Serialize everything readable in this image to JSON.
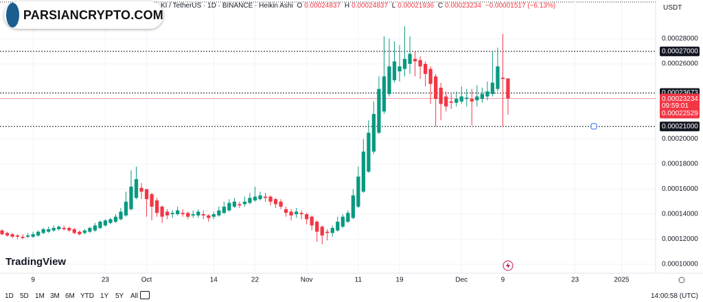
{
  "header": {
    "symbol": "KI / TetherUS · 1D · BINANCE · Heikin Ashi",
    "o": "O",
    "h": "H",
    "l": "L",
    "c": "C",
    "change": "−0.00001517 (−6.13%)",
    "currency": "USDT"
  },
  "watermark": "PARSIANCRYPTO.COM",
  "brand": "TradingView",
  "toolbar": {
    "ranges": [
      "1D",
      "5D",
      "1M",
      "3M",
      "6M",
      "YTD",
      "1Y",
      "5Y",
      "All"
    ],
    "time": "14:00:58 (UTC)"
  },
  "chart_data": {
    "type": "candlestick",
    "up_color": "#089981",
    "down_color": "#f23645",
    "x": [
      3,
      4,
      5,
      6,
      7,
      8,
      9,
      10,
      11,
      12,
      13,
      14,
      15,
      16,
      17,
      18,
      19,
      20,
      21,
      22,
      23,
      24,
      25,
      26,
      27,
      28,
      29,
      30,
      31,
      32,
      33,
      34,
      35,
      36,
      37,
      38,
      39,
      40,
      41,
      42,
      43,
      44,
      45,
      46,
      47,
      48,
      49,
      50,
      51,
      52,
      53,
      54,
      55,
      56,
      57,
      58,
      59,
      60,
      61,
      62,
      63,
      64,
      65,
      66,
      67,
      68,
      69,
      70,
      71,
      72,
      73,
      74,
      75,
      76,
      77,
      78,
      79,
      80,
      81,
      82,
      83,
      84,
      85,
      86,
      87,
      88,
      89,
      90,
      91,
      92,
      93,
      94,
      95,
      96,
      97,
      98,
      99,
      100,
      101
    ],
    "open": [
      0.000127,
      0.000125,
      0.000124,
      0.000123,
      0.000122,
      0.000122,
      0.000122,
      0.000123,
      0.000125,
      0.000126,
      0.000127,
      0.000128,
      0.000129,
      0.000129,
      0.000128,
      0.000126,
      0.000125,
      0.000126,
      0.000127,
      0.000129,
      0.000131,
      0.000133,
      0.000134,
      0.000136,
      0.000139,
      0.000144,
      0.000153,
      0.000161,
      0.00016,
      0.000156,
      0.000151,
      0.000146,
      0.000142,
      0.00014,
      0.00014,
      0.000141,
      0.000141,
      0.000139,
      0.000139,
      0.00014,
      0.000139,
      0.000138,
      0.000139,
      0.000141,
      0.000143,
      0.000146,
      0.000148,
      0.000148,
      0.000149,
      0.000151,
      0.000152,
      0.000154,
      0.000154,
      0.000152,
      0.00015,
      0.000144,
      0.000142,
      0.00014,
      0.000141,
      0.00014,
      0.000138,
      0.000134,
      0.00013,
      0.000126,
      0.000125,
      0.000127,
      0.00013,
      0.000134,
      0.000137,
      0.000146,
      0.000158,
      0.000174,
      0.00019,
      0.000205,
      0.000222,
      0.000236,
      0.000247,
      0.000254,
      0.000256,
      0.00026,
      0.000264,
      0.000263,
      0.00026,
      0.000256,
      0.00025,
      0.000241,
      0.000234,
      0.00023,
      0.000229,
      0.00023,
      0.000232,
      0.000232,
      0.000231,
      0.000232,
      0.000234,
      0.000236,
      0.00024,
      0.000249,
      0.00024837
    ],
    "close": [
      0.000124,
      0.000123,
      0.000122,
      0.000122,
      0.000121,
      0.000123,
      0.000124,
      0.000126,
      0.000128,
      0.000128,
      0.000129,
      0.00013,
      0.000128,
      0.000127,
      0.000125,
      0.000124,
      0.000127,
      0.000129,
      0.000131,
      0.000134,
      0.000135,
      0.000136,
      0.000138,
      0.000142,
      0.00015,
      0.000162,
      0.000168,
      0.000158,
      0.000152,
      0.000146,
      0.000141,
      0.000138,
      0.000139,
      0.000141,
      0.000143,
      0.00014,
      0.000138,
      0.00014,
      0.000142,
      0.000139,
      0.000137,
      0.00014,
      0.000143,
      0.000146,
      0.000149,
      0.00015,
      0.000147,
      0.00015,
      0.000153,
      0.000154,
      0.000155,
      0.000153,
      0.00015,
      0.000148,
      0.000146,
      0.000141,
      0.000139,
      0.000142,
      0.00014,
      0.000136,
      0.000131,
      0.000126,
      0.000123,
      0.000125,
      0.000129,
      0.000134,
      0.000138,
      0.000141,
      0.000155,
      0.00017,
      0.00019,
      0.000205,
      0.00022,
      0.00024,
      0.00025,
      0.000258,
      0.000262,
      0.000258,
      0.000264,
      0.000268,
      0.000262,
      0.000258,
      0.000252,
      0.000244,
      0.000232,
      0.000228,
      0.000226,
      0.000229,
      0.000232,
      0.000234,
      0.000233,
      0.00023,
      0.000234,
      0.000236,
      0.000238,
      0.000245,
      0.000258,
      0.000248,
      0.00023234
    ],
    "high": [
      0.000128,
      0.000126,
      0.000125,
      0.000124,
      0.000124,
      0.000125,
      0.000126,
      0.000127,
      0.000129,
      0.00013,
      0.000131,
      0.000131,
      0.000131,
      0.00013,
      0.000129,
      0.000127,
      0.000128,
      0.00013,
      0.000133,
      0.000135,
      0.000136,
      0.000137,
      0.00014,
      0.000145,
      0.000158,
      0.000175,
      0.000178,
      0.000165,
      0.00016,
      0.000157,
      0.000153,
      0.000147,
      0.000144,
      0.000143,
      0.000146,
      0.000144,
      0.000142,
      0.000143,
      0.000144,
      0.000143,
      0.00014,
      0.000142,
      0.000146,
      0.00015,
      0.000152,
      0.000153,
      0.00015,
      0.000154,
      0.000157,
      0.000162,
      0.000158,
      0.000157,
      0.000155,
      0.000153,
      0.000152,
      0.000146,
      0.000144,
      0.000145,
      0.000143,
      0.000141,
      0.000139,
      0.000135,
      0.000131,
      0.000128,
      0.000131,
      0.000138,
      0.00014,
      0.000143,
      0.00016,
      0.000178,
      0.0002,
      0.000215,
      0.00023,
      0.00025,
      0.000282,
      0.00028,
      0.000278,
      0.000275,
      0.00029,
      0.000282,
      0.00027,
      0.000266,
      0.000262,
      0.000258,
      0.000252,
      0.000245,
      0.000238,
      0.000236,
      0.000238,
      0.000242,
      0.00024,
      0.00024,
      0.000243,
      0.000241,
      0.000246,
      0.00027,
      0.000273,
      0.000284,
      0.00024837
    ],
    "low": [
      0.000123,
      0.000122,
      0.000121,
      0.00012,
      0.00012,
      0.000121,
      0.000121,
      0.000122,
      0.000124,
      0.000125,
      0.000126,
      0.000127,
      0.000127,
      0.000126,
      0.000124,
      0.000123,
      0.000124,
      0.000125,
      0.000126,
      0.000128,
      0.00013,
      0.000132,
      0.000133,
      0.000135,
      0.000138,
      0.000143,
      0.000152,
      0.000152,
      0.000138,
      0.000135,
      0.000138,
      0.000133,
      0.000136,
      0.000137,
      0.000139,
      0.000138,
      0.000136,
      0.000137,
      0.000137,
      0.000136,
      0.000134,
      0.000136,
      0.000138,
      0.00014,
      0.000142,
      0.000145,
      0.000145,
      0.000146,
      0.000148,
      0.00015,
      0.000151,
      0.00015,
      0.000147,
      0.000145,
      0.000144,
      0.000138,
      0.000135,
      0.000137,
      0.000136,
      0.000132,
      0.000127,
      0.000118,
      0.000116,
      0.000119,
      0.000122,
      0.000126,
      0.000129,
      0.000133,
      0.000136,
      0.000145,
      0.000157,
      0.000173,
      0.000188,
      0.000204,
      0.00022,
      0.000234,
      0.000245,
      0.000246,
      0.00025,
      0.000252,
      0.00025,
      0.000248,
      0.000242,
      0.000228,
      0.00021,
      0.000215,
      0.000222,
      0.000224,
      0.000226,
      0.000228,
      0.000226,
      0.000211,
      0.000226,
      0.000229,
      0.000231,
      0.000234,
      0.000238,
      0.00021,
      0.00021936
    ],
    "xlim": [
      2.6,
      129.6
    ],
    "xticks": [
      {
        "value": 9,
        "label": "9"
      },
      {
        "value": 23,
        "label": "23"
      },
      {
        "value": 31,
        "label": "Oct"
      },
      {
        "value": 44,
        "label": "14"
      },
      {
        "value": 52,
        "label": "22"
      },
      {
        "value": 62,
        "label": "Nov"
      },
      {
        "value": 72,
        "label": "11"
      },
      {
        "value": 80,
        "label": "19"
      },
      {
        "value": 92,
        "label": "Dec"
      },
      {
        "value": 100,
        "label": "9"
      },
      {
        "value": 114,
        "label": "23"
      },
      {
        "value": 123,
        "label": "2025"
      }
    ],
    "ylim": [
      9.29e-05,
      0.000311
    ],
    "yticks": [
      {
        "value": 0.0001,
        "label": "0.00010000"
      },
      {
        "value": 0.00012,
        "label": "0.00012000"
      },
      {
        "value": 0.00014,
        "label": "0.00014000"
      },
      {
        "value": 0.00016,
        "label": "0.00016000"
      },
      {
        "value": 0.00018,
        "label": "0.00018000"
      },
      {
        "value": 0.0002,
        "label": "0.00020000"
      },
      {
        "value": 0.00026,
        "label": "0.00026000"
      },
      {
        "value": 0.00028,
        "label": "0.00028000"
      }
    ],
    "price_lines": [
      {
        "value": 0.00027,
        "label": "0.00027000"
      },
      {
        "value": 0.00023673,
        "label": "0.00023673"
      },
      {
        "value": 0.00021,
        "label": "0.00021000"
      }
    ],
    "countdown": "09:59:01",
    "price_extra": "0.00022529"
  }
}
